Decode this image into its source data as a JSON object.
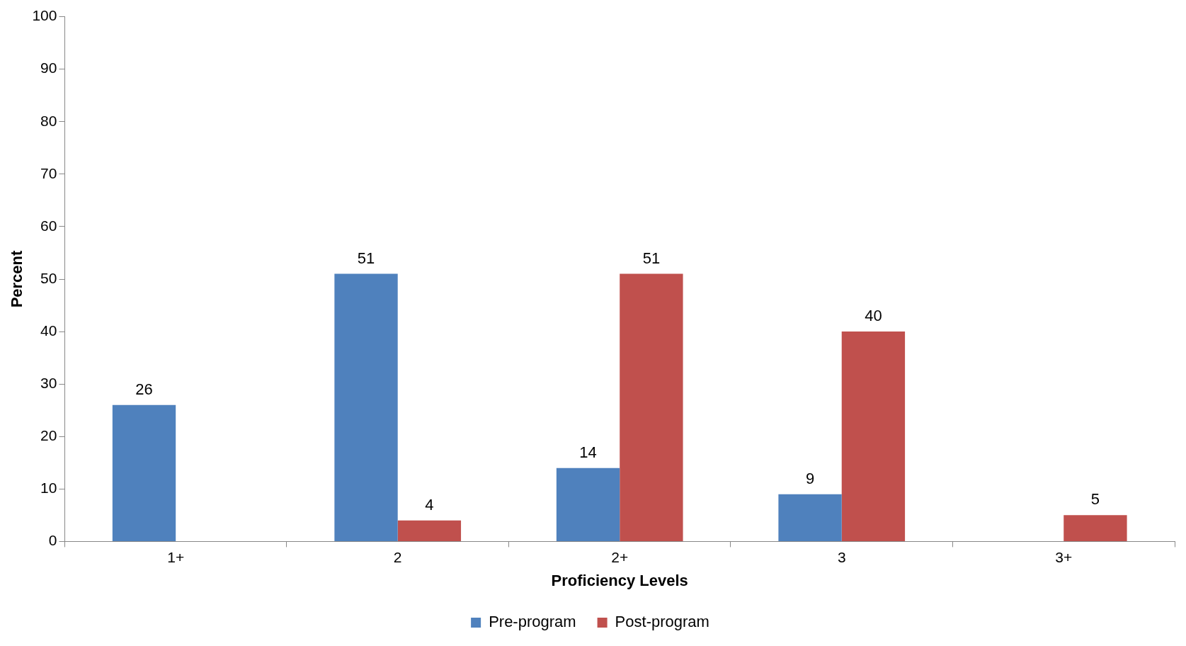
{
  "chart_data": {
    "type": "bar",
    "xlabel": "Proficiency Levels",
    "ylabel": "Percent",
    "categories": [
      "1+",
      "2",
      "2+",
      "3",
      "3+"
    ],
    "series": [
      {
        "name": "Pre-program",
        "color": "#4f81bd",
        "values": [
          26,
          51,
          14,
          9,
          null
        ]
      },
      {
        "name": "Post-program",
        "color": "#c0504d",
        "values": [
          null,
          4,
          51,
          40,
          5
        ]
      }
    ],
    "ylim": [
      0,
      100
    ],
    "yticks": [
      0,
      10,
      20,
      30,
      40,
      50,
      60,
      70,
      80,
      90,
      100
    ],
    "grid": false,
    "legend": "bottom",
    "data_labels": true
  }
}
